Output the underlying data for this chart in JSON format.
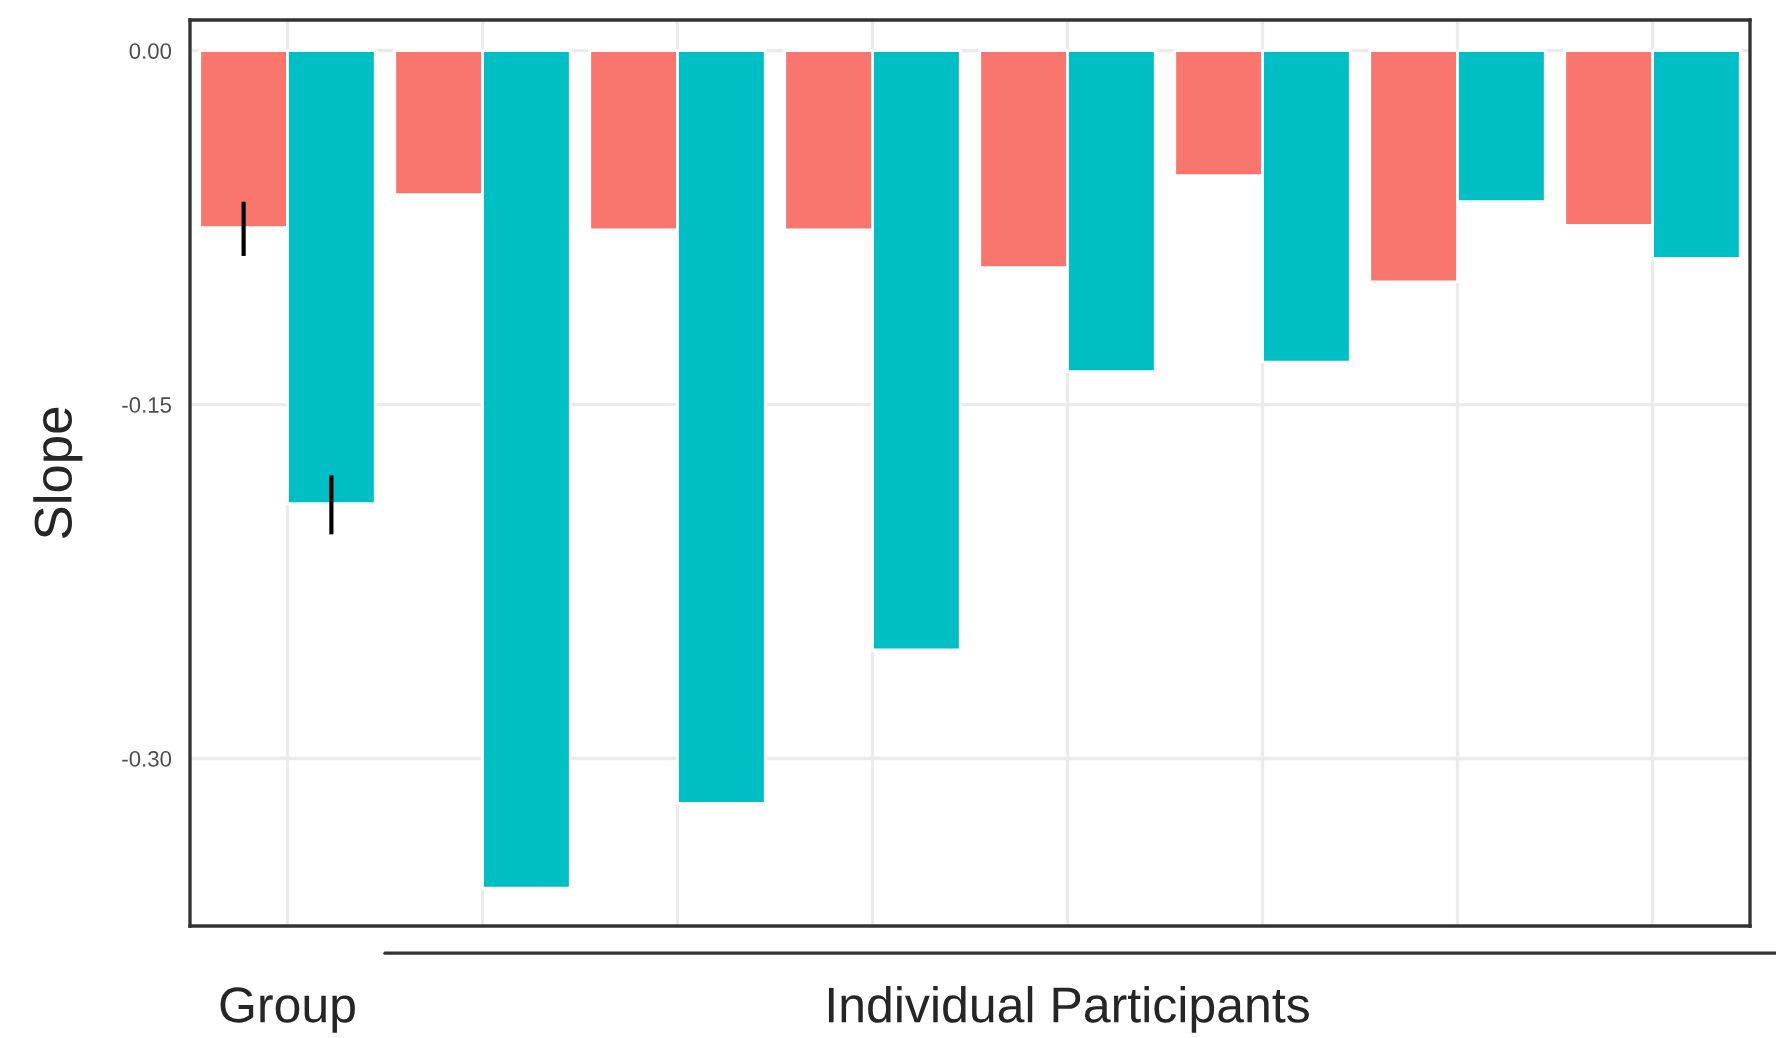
{
  "chart_data": {
    "type": "bar",
    "ylabel": "Slope",
    "categories": [
      null,
      null,
      null,
      null,
      null,
      null,
      null,
      null
    ],
    "series": [
      {
        "color": "#f8766d",
        "values": [
          -0.075,
          -0.061,
          -0.076,
          -0.076,
          -0.092,
          -0.053,
          -0.098,
          -0.074
        ],
        "errors": [
          [
            -0.087,
            -0.064
          ],
          null,
          null,
          null,
          null,
          null,
          null,
          null
        ]
      },
      {
        "color": "#00bfc4",
        "values": [
          -0.192,
          -0.355,
          -0.319,
          -0.254,
          -0.136,
          -0.132,
          -0.064,
          -0.088
        ],
        "errors": [
          [
            -0.205,
            -0.18
          ],
          null,
          null,
          null,
          null,
          null,
          null,
          null
        ]
      }
    ],
    "ylim": [
      -0.371,
      0.013
    ],
    "yticks": [
      {
        "value": 0,
        "label": "0.00"
      },
      {
        "value": -0.15,
        "label": "-0.15"
      },
      {
        "value": -0.3,
        "label": "-0.30"
      }
    ],
    "grid": true,
    "annotations": [
      "Group",
      "Individual Participants"
    ]
  }
}
